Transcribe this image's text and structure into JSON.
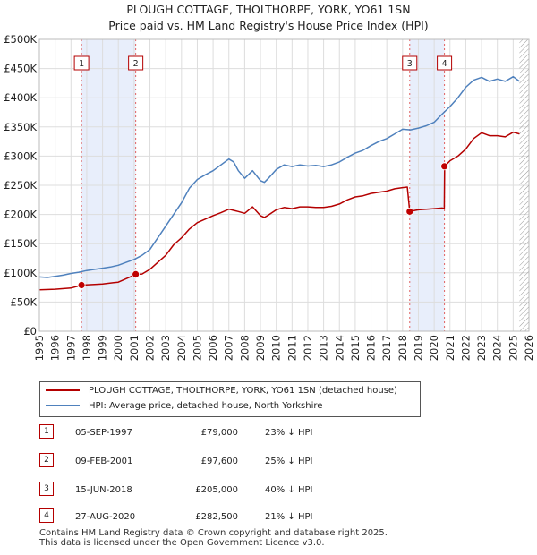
{
  "colors": {
    "price_line": "#b40000",
    "hpi_line": "#4f81bd",
    "shade": "#e8eefb",
    "grid": "#dddddd",
    "marker": "#c00000"
  },
  "chart_data": {
    "type": "line",
    "title": "PLOUGH COTTAGE, THOLTHORPE, YORK, YO61 1SN",
    "subtitle": "Price paid vs. HM Land Registry's House Price Index (HPI)",
    "xlabel": "",
    "ylabel": "",
    "xlim": [
      1995,
      2026
    ],
    "ylim": [
      0,
      500000
    ],
    "grid": true,
    "legend_position": "bottom",
    "x_ticks": [
      "1995",
      "1996",
      "1997",
      "1998",
      "1999",
      "2000",
      "2001",
      "2002",
      "2003",
      "2004",
      "2005",
      "2006",
      "2007",
      "2008",
      "2009",
      "2010",
      "2011",
      "2012",
      "2013",
      "2014",
      "2015",
      "2016",
      "2017",
      "2018",
      "2019",
      "2020",
      "2021",
      "2022",
      "2023",
      "2024",
      "2025",
      "2026"
    ],
    "y_ticks": [
      {
        "value": 0,
        "label": "£0"
      },
      {
        "value": 50000,
        "label": "£50K"
      },
      {
        "value": 100000,
        "label": "£100K"
      },
      {
        "value": 150000,
        "label": "£150K"
      },
      {
        "value": 200000,
        "label": "£200K"
      },
      {
        "value": 250000,
        "label": "£250K"
      },
      {
        "value": 300000,
        "label": "£300K"
      },
      {
        "value": 350000,
        "label": "£350K"
      },
      {
        "value": 400000,
        "label": "£400K"
      },
      {
        "value": 450000,
        "label": "£450K"
      },
      {
        "value": 500000,
        "label": "£500K"
      }
    ],
    "series": [
      {
        "name": "HPI: Average price, detached house, North Yorkshire",
        "x": [
          1995,
          1995.5,
          1996,
          1996.5,
          1997,
          1997.5,
          1998,
          1998.5,
          1999,
          1999.5,
          2000,
          2000.5,
          2001,
          2001.5,
          2002,
          2002.5,
          2003,
          2003.5,
          2004,
          2004.5,
          2005,
          2005.5,
          2006,
          2006.5,
          2007,
          2007.3,
          2007.6,
          2008,
          2008.5,
          2009,
          2009.25,
          2009.5,
          2010,
          2010.5,
          2011,
          2011.5,
          2012,
          2012.5,
          2013,
          2013.5,
          2014,
          2014.5,
          2015,
          2015.5,
          2016,
          2016.5,
          2017,
          2017.5,
          2018,
          2018.5,
          2019,
          2019.5,
          2020,
          2020.5,
          2021,
          2021.5,
          2022,
          2022.5,
          2023,
          2023.5,
          2024,
          2024.5,
          2025,
          2025.4
        ],
        "values": [
          93000,
          92000,
          94000,
          96000,
          99000,
          101000,
          104000,
          106000,
          108000,
          110000,
          113000,
          118000,
          123000,
          130000,
          140000,
          160000,
          180000,
          200000,
          220000,
          245000,
          260000,
          268000,
          275000,
          285000,
          295000,
          290000,
          275000,
          262000,
          275000,
          258000,
          255000,
          262000,
          277000,
          285000,
          282000,
          285000,
          283000,
          284000,
          282000,
          285000,
          290000,
          298000,
          305000,
          310000,
          318000,
          325000,
          330000,
          338000,
          346000,
          345000,
          348000,
          352000,
          358000,
          372000,
          385000,
          400000,
          418000,
          430000,
          435000,
          428000,
          432000,
          428000,
          436000,
          428000
        ]
      },
      {
        "name": "PLOUGH COTTAGE, THOLTHORPE, YORK, YO61 1SN (detached house)",
        "x": [
          1995,
          1996,
          1997,
          1997.67,
          1998.5,
          1999,
          2000,
          2000.5,
          2001,
          2001.1,
          2001.5,
          2002,
          2002.5,
          2003,
          2003.5,
          2004,
          2004.5,
          2005,
          2005.5,
          2006,
          2006.5,
          2007,
          2007.3,
          2007.6,
          2008,
          2008.5,
          2009,
          2009.25,
          2009.5,
          2010,
          2010.5,
          2011,
          2011.5,
          2012,
          2012.5,
          2013,
          2013.5,
          2014,
          2014.5,
          2015,
          2015.5,
          2016,
          2016.5,
          2017,
          2017.5,
          2018,
          2018.3,
          2018.45,
          2018.8,
          2019,
          2019.5,
          2020,
          2020.5,
          2020.64,
          2020.66,
          2021,
          2021.5,
          2022,
          2022.5,
          2023,
          2023.5,
          2024,
          2024.5,
          2025,
          2025.4
        ],
        "values": [
          71000,
          72000,
          74000,
          79000,
          80000,
          81000,
          84000,
          90000,
          96000,
          97600,
          98000,
          106000,
          118000,
          130000,
          148000,
          160000,
          175000,
          186000,
          192000,
          198000,
          203000,
          209000,
          207000,
          205000,
          202000,
          213000,
          198000,
          195000,
          199000,
          208000,
          212000,
          210000,
          213000,
          213000,
          212000,
          212000,
          214000,
          218000,
          225000,
          230000,
          232000,
          236000,
          238000,
          240000,
          244000,
          246000,
          247000,
          205000,
          207000,
          208000,
          209000,
          210000,
          211000,
          210000,
          282500,
          292000,
          300000,
          312000,
          330000,
          340000,
          335000,
          335000,
          333000,
          341000,
          338000
        ]
      }
    ],
    "sales": [
      {
        "num": "1",
        "x": 1997.67,
        "price": 79000
      },
      {
        "num": "2",
        "x": 2001.1,
        "price": 97600
      },
      {
        "num": "3",
        "x": 2018.45,
        "price": 205000
      },
      {
        "num": "4",
        "x": 2020.65,
        "price": 282500
      }
    ],
    "shaded_ranges": [
      [
        1997.67,
        2001.1
      ],
      [
        2018.45,
        2020.65
      ]
    ],
    "hatch_from": 2025.4
  },
  "legend": {
    "price_label": "PLOUGH COTTAGE, THOLTHORPE, YORK, YO61 1SN (detached house)",
    "hpi_label": "HPI: Average price, detached house, North Yorkshire"
  },
  "sales_table": [
    {
      "num": "1",
      "date": "05-SEP-1997",
      "price": "£79,000",
      "hpi": "23% ↓ HPI"
    },
    {
      "num": "2",
      "date": "09-FEB-2001",
      "price": "£97,600",
      "hpi": "25% ↓ HPI"
    },
    {
      "num": "3",
      "date": "15-JUN-2018",
      "price": "£205,000",
      "hpi": "40% ↓ HPI"
    },
    {
      "num": "4",
      "date": "27-AUG-2020",
      "price": "£282,500",
      "hpi": "21% ↓ HPI"
    }
  ],
  "footer": {
    "line1": "Contains HM Land Registry data © Crown copyright and database right 2025.",
    "line2": "This data is licensed under the Open Government Licence v3.0."
  }
}
